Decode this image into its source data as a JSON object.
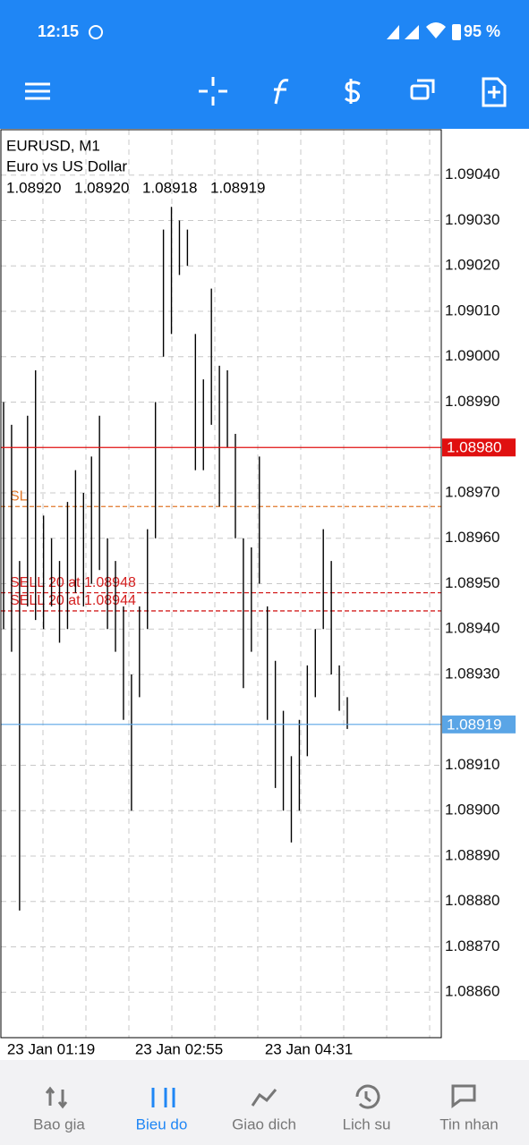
{
  "status_bar": {
    "time": "12:15",
    "battery": "95 %"
  },
  "chart": {
    "type": "ohlc-range",
    "symbol": "EURUSD, M1",
    "description": "Euro vs US Dollar",
    "ohlc": [
      "1.08920",
      "1.08920",
      "1.08918",
      "1.08919"
    ],
    "ylim": [
      1.0885,
      1.0905
    ],
    "yticks": [
      {
        "value": 1.0904,
        "label": "1.09040"
      },
      {
        "value": 1.0903,
        "label": "1.09030"
      },
      {
        "value": 1.0902,
        "label": "1.09020"
      },
      {
        "value": 1.0901,
        "label": "1.09010"
      },
      {
        "value": 1.09,
        "label": "1.09000"
      },
      {
        "value": 1.0899,
        "label": "1.08990"
      },
      {
        "value": 1.0897,
        "label": "1.08970"
      },
      {
        "value": 1.0896,
        "label": "1.08960"
      },
      {
        "value": 1.0895,
        "label": "1.08950"
      },
      {
        "value": 1.0894,
        "label": "1.08940"
      },
      {
        "value": 1.0893,
        "label": "1.08930"
      },
      {
        "value": 1.0891,
        "label": "1.08910"
      },
      {
        "value": 1.089,
        "label": "1.08900"
      },
      {
        "value": 1.0889,
        "label": "1.08890"
      },
      {
        "value": 1.0888,
        "label": "1.08880"
      },
      {
        "value": 1.0887,
        "label": "1.08870"
      },
      {
        "value": 1.0886,
        "label": "1.08860"
      }
    ],
    "xlabels": [
      "23 Jan 01:19",
      "23 Jan 02:55",
      "23 Jan 04:31"
    ],
    "price_tags": [
      {
        "value": 1.0898,
        "label": "1.08980",
        "color": "#e01010"
      },
      {
        "value": 1.08919,
        "label": "1.08919",
        "color": "#5aa5e6"
      }
    ],
    "levels": [
      {
        "value": 1.08967,
        "label": "SL",
        "color": "#e0782a"
      },
      {
        "value": 1.08948,
        "label": "SELL 20 at 1.08948",
        "color": "#d42020"
      },
      {
        "value": 1.08944,
        "label": "SELL 20 at 1.08944",
        "color": "#d42020"
      }
    ],
    "bars": [
      {
        "high": 1.0899,
        "low": 1.0894
      },
      {
        "high": 1.08985,
        "low": 1.08935
      },
      {
        "high": 1.08955,
        "low": 1.08878
      },
      {
        "high": 1.08987,
        "low": 1.08945
      },
      {
        "high": 1.08997,
        "low": 1.08942
      },
      {
        "high": 1.08965,
        "low": 1.0894
      },
      {
        "high": 1.0896,
        "low": 1.08945
      },
      {
        "high": 1.08955,
        "low": 1.08937
      },
      {
        "high": 1.08968,
        "low": 1.0894
      },
      {
        "high": 1.08975,
        "low": 1.08948
      },
      {
        "high": 1.0897,
        "low": 1.08945
      },
      {
        "high": 1.08978,
        "low": 1.0895
      },
      {
        "high": 1.08987,
        "low": 1.08953
      },
      {
        "high": 1.0896,
        "low": 1.0894
      },
      {
        "high": 1.08955,
        "low": 1.08935
      },
      {
        "high": 1.08945,
        "low": 1.0892
      },
      {
        "high": 1.0893,
        "low": 1.089
      },
      {
        "high": 1.08945,
        "low": 1.08925
      },
      {
        "high": 1.08962,
        "low": 1.0894
      },
      {
        "high": 1.0899,
        "low": 1.0896
      },
      {
        "high": 1.09028,
        "low": 1.09
      },
      {
        "high": 1.09033,
        "low": 1.09005
      },
      {
        "high": 1.0903,
        "low": 1.09018
      },
      {
        "high": 1.09028,
        "low": 1.0902
      },
      {
        "high": 1.09005,
        "low": 1.08975
      },
      {
        "high": 1.08995,
        "low": 1.08975
      },
      {
        "high": 1.09015,
        "low": 1.08985
      },
      {
        "high": 1.08998,
        "low": 1.08967
      },
      {
        "high": 1.08997,
        "low": 1.0898
      },
      {
        "high": 1.08983,
        "low": 1.0896
      },
      {
        "high": 1.0896,
        "low": 1.08927
      },
      {
        "high": 1.08958,
        "low": 1.08935
      },
      {
        "high": 1.08978,
        "low": 1.0895
      },
      {
        "high": 1.08945,
        "low": 1.0892
      },
      {
        "high": 1.08933,
        "low": 1.08905
      },
      {
        "high": 1.08922,
        "low": 1.089
      },
      {
        "high": 1.08912,
        "low": 1.08893
      },
      {
        "high": 1.0892,
        "low": 1.089
      },
      {
        "high": 1.08932,
        "low": 1.08912
      },
      {
        "high": 1.0894,
        "low": 1.08925
      },
      {
        "high": 1.08962,
        "low": 1.0894
      },
      {
        "high": 1.08955,
        "low": 1.0893
      },
      {
        "high": 1.08932,
        "low": 1.08922
      },
      {
        "high": 1.08925,
        "low": 1.08918
      }
    ]
  },
  "nav": [
    "Bao gia",
    "Bieu do",
    "Giao dich",
    "Lich su",
    "Tin nhan"
  ]
}
